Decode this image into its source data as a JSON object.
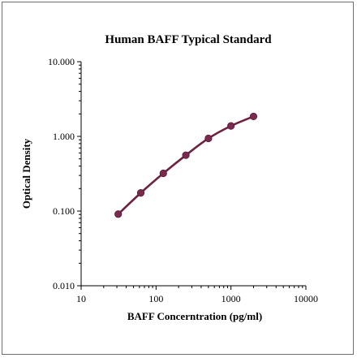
{
  "chart_data": {
    "type": "line",
    "title": "Human BAFF Typical Standard",
    "xlabel": "BAFF Concerntration (pg/ml)",
    "ylabel": "Optical Density",
    "x_scale": "log",
    "y_scale": "log",
    "xlim": [
      10,
      10000
    ],
    "ylim": [
      0.01,
      10
    ],
    "x_ticks": [
      10,
      100,
      1000,
      10000
    ],
    "x_tick_labels": [
      "10",
      "100",
      "1000",
      "10000"
    ],
    "y_ticks": [
      0.01,
      0.1,
      1,
      10
    ],
    "y_tick_labels": [
      "0.010",
      "0.100",
      "1.000",
      "10.000"
    ],
    "grid": false,
    "series": [
      {
        "x": [
          31.25,
          62.5,
          125,
          250,
          500,
          1000,
          2000
        ],
        "y": [
          0.091,
          0.175,
          0.32,
          0.56,
          0.94,
          1.38,
          1.85
        ]
      }
    ],
    "colors": {
      "line": "#6e2140",
      "marker": "#7a2a4e",
      "axis": "#000000"
    }
  }
}
